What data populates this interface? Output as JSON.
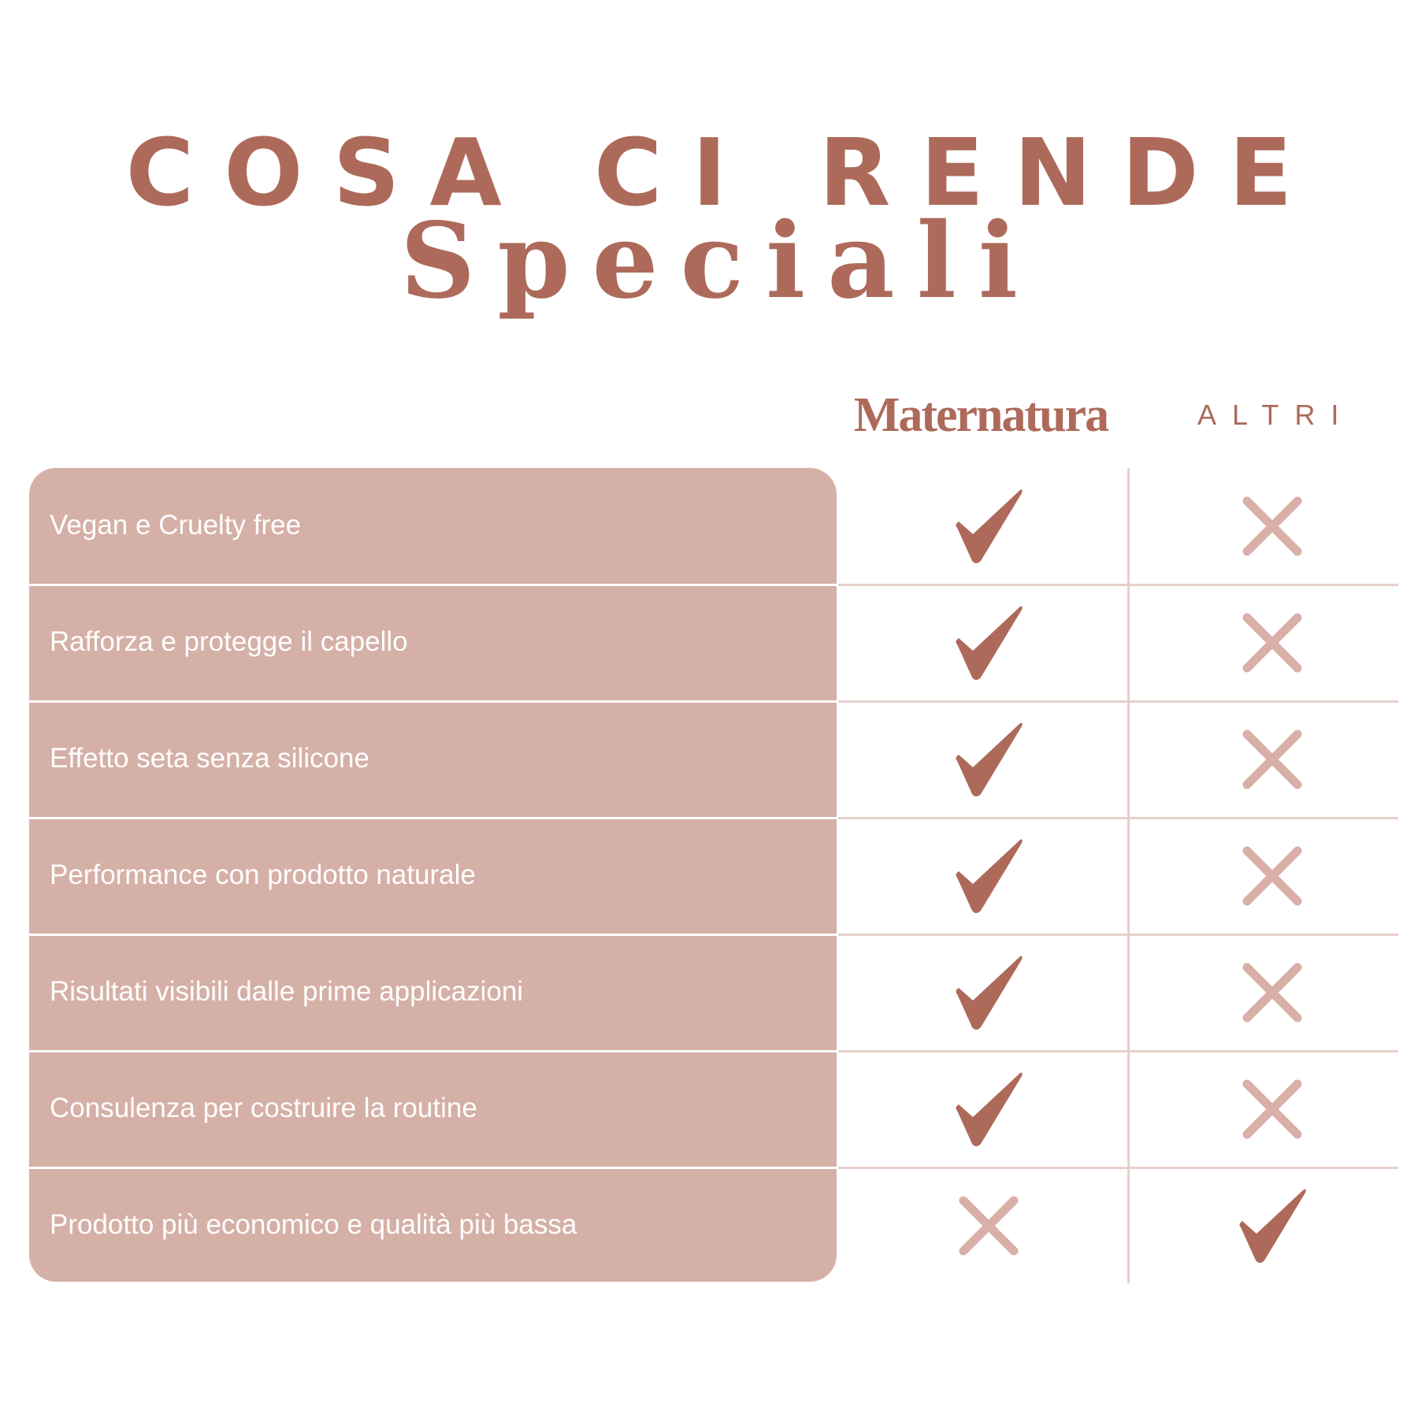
{
  "header": {
    "line1": "COSA CI RENDE",
    "line2": "Speciali"
  },
  "columns": {
    "brand": "Maternatura",
    "others": "ALTRI"
  },
  "colors": {
    "accent": "#ad6a5a",
    "row_bg": "#d5b0a7",
    "cross": "#d8b0a8",
    "divider": "#e6d0cb"
  },
  "rows": [
    {
      "label": "Vegan e Cruelty free",
      "maternatura": "check",
      "altri": "cross"
    },
    {
      "label": "Rafforza e protegge il capello",
      "maternatura": "check",
      "altri": "cross"
    },
    {
      "label": "Effetto seta senza silicone",
      "maternatura": "check",
      "altri": "cross"
    },
    {
      "label": "Performance con prodotto naturale",
      "maternatura": "check",
      "altri": "cross"
    },
    {
      "label": "Risultati visibili dalle prime applicazioni",
      "maternatura": "check",
      "altri": "cross"
    },
    {
      "label": "Consulenza per costruire la routine",
      "maternatura": "check",
      "altri": "cross"
    },
    {
      "label": "Prodotto più economico e qualità più bassa",
      "maternatura": "cross",
      "altri": "check"
    }
  ]
}
